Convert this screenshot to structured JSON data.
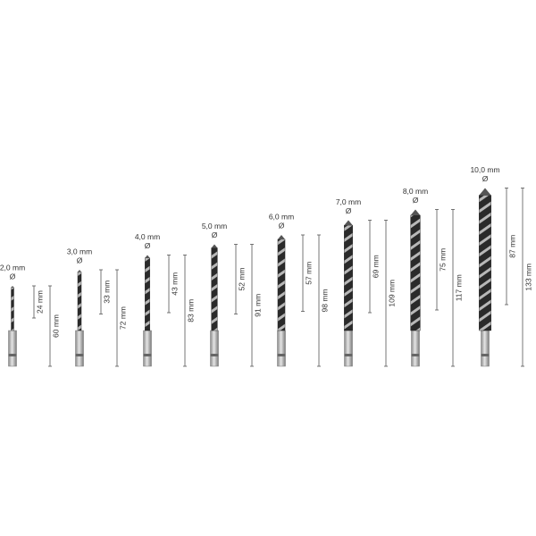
{
  "diameter_symbol": "Ø",
  "drills": [
    {
      "diameter": "2,0 mm",
      "flute": "24 mm",
      "total": "60 mm"
    },
    {
      "diameter": "3,0 mm",
      "flute": "33 mm",
      "total": "72 mm"
    },
    {
      "diameter": "4,0 mm",
      "flute": "43 mm",
      "total": "83 mm"
    },
    {
      "diameter": "5,0 mm",
      "flute": "52 mm",
      "total": "91 mm"
    },
    {
      "diameter": "6,0 mm",
      "flute": "57 mm",
      "total": "98 mm"
    },
    {
      "diameter": "7,0 mm",
      "flute": "69 mm",
      "total": "109 mm"
    },
    {
      "diameter": "8,0 mm",
      "flute": "75 mm",
      "total": "117 mm"
    },
    {
      "diameter": "10,0 mm",
      "flute": "87 mm",
      "total": "133 mm"
    }
  ]
}
